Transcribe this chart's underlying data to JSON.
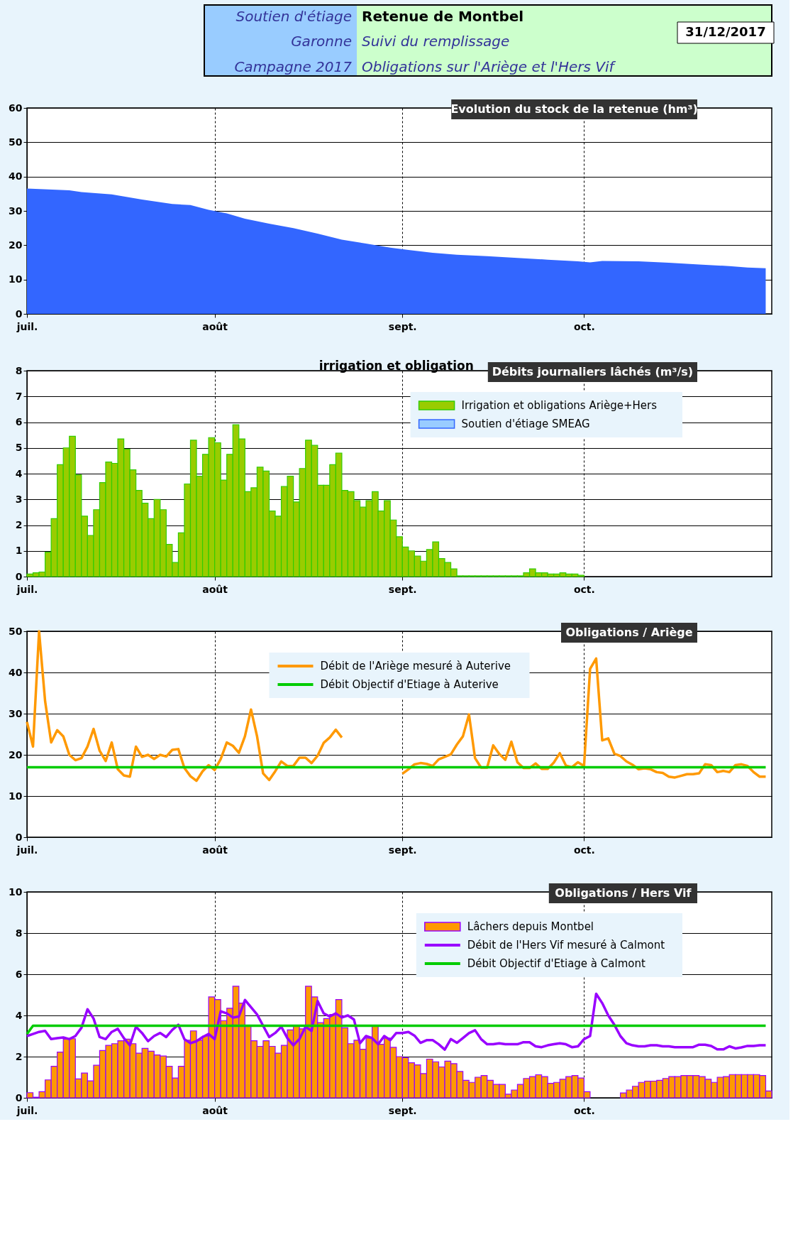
{
  "chart_data": [
    {
      "type": "area",
      "title": "Evolution du stock de la retenue (hm³)",
      "color": "#3366ff",
      "grid": true,
      "annotations": [
        "Soutien d'étiage",
        "Garonne",
        "Campagne 2017",
        "Retenue de Montbel",
        "Suivi du remplissage",
        "Obligations sur l'Ariège et l'Hers Vif",
        "31/12/2017"
      ],
      "x": [
        "2017-07-01",
        "2017-07-08",
        "2017-07-10",
        "2017-07-15",
        "2017-07-20",
        "2017-07-25",
        "2017-07-28",
        "2017-07-31",
        "2017-08-03",
        "2017-08-06",
        "2017-08-10",
        "2017-08-14",
        "2017-08-18",
        "2017-08-22",
        "2017-08-26",
        "2017-08-30",
        "2017-09-02",
        "2017-09-06",
        "2017-09-10",
        "2017-09-15",
        "2017-09-20",
        "2017-09-25",
        "2017-09-30",
        "2017-10-02",
        "2017-10-04",
        "2017-10-10",
        "2017-10-15",
        "2017-10-20",
        "2017-10-25",
        "2017-10-28",
        "2017-10-31"
      ],
      "values": [
        36.5,
        36,
        35.5,
        34.8,
        33.3,
        32,
        31.7,
        30.3,
        29.3,
        27.7,
        26.3,
        25,
        23.4,
        21.6,
        20.5,
        19.3,
        18.6,
        17.8,
        17.2,
        16.8,
        16.3,
        15.8,
        15.3,
        15,
        15.4,
        15.3,
        14.9,
        14.4,
        13.9,
        13.5,
        13.3
      ],
      "xlim": [
        "2017-07-01",
        "2017-11-01"
      ],
      "xticks": [
        {
          "value": "2017-07-01",
          "label": "juil."
        },
        {
          "value": "2017-08-01",
          "label": "août"
        },
        {
          "value": "2017-09-01",
          "label": "sept."
        },
        {
          "value": "2017-10-01",
          "label": "oct."
        }
      ],
      "ylim": [
        0,
        60
      ],
      "yticks": [
        0,
        10,
        20,
        30,
        40,
        50,
        60
      ]
    },
    {
      "type": "bar",
      "title": "Débits journaliers lâchés (m³/s)",
      "annotations": [
        "irrigation et obligation"
      ],
      "grid": true,
      "legend": "top right",
      "x": [
        "2017-07-01",
        "2017-07-02",
        "2017-07-03",
        "2017-07-04",
        "2017-07-05",
        "2017-07-06",
        "2017-07-07",
        "2017-07-08",
        "2017-07-09",
        "2017-07-10",
        "2017-07-11",
        "2017-07-12",
        "2017-07-13",
        "2017-07-14",
        "2017-07-15",
        "2017-07-16",
        "2017-07-17",
        "2017-07-18",
        "2017-07-19",
        "2017-07-20",
        "2017-07-21",
        "2017-07-22",
        "2017-07-23",
        "2017-07-24",
        "2017-07-25",
        "2017-07-26",
        "2017-07-27",
        "2017-07-28",
        "2017-07-29",
        "2017-07-30",
        "2017-07-31",
        "2017-08-01",
        "2017-08-02",
        "2017-08-03",
        "2017-08-04",
        "2017-08-05",
        "2017-08-06",
        "2017-08-07",
        "2017-08-08",
        "2017-08-09",
        "2017-08-10",
        "2017-08-11",
        "2017-08-12",
        "2017-08-13",
        "2017-08-14",
        "2017-08-15",
        "2017-08-16",
        "2017-08-17",
        "2017-08-18",
        "2017-08-19",
        "2017-08-20",
        "2017-08-21",
        "2017-08-22",
        "2017-08-23",
        "2017-08-24",
        "2017-08-25",
        "2017-08-26",
        "2017-08-27",
        "2017-08-28",
        "2017-08-29",
        "2017-08-30",
        "2017-08-31",
        "2017-09-01",
        "2017-09-02",
        "2017-09-03",
        "2017-09-04",
        "2017-09-05",
        "2017-09-06",
        "2017-09-07",
        "2017-09-08",
        "2017-09-09",
        "2017-09-10",
        "2017-09-11",
        "2017-09-12",
        "2017-09-13",
        "2017-09-14",
        "2017-09-15",
        "2017-09-16",
        "2017-09-17",
        "2017-09-18",
        "2017-09-19",
        "2017-09-20",
        "2017-09-21",
        "2017-09-22",
        "2017-09-23",
        "2017-09-24",
        "2017-09-25",
        "2017-09-26",
        "2017-09-27",
        "2017-09-28",
        "2017-09-29",
        "2017-09-30"
      ],
      "series": [
        {
          "name": "Irrigation et obligations Ariège+Hers",
          "color": "#99cc00",
          "values": [
            0.1,
            0.15,
            0.18,
            0.95,
            2.25,
            4.35,
            5.0,
            5.45,
            3.95,
            2.35,
            1.6,
            2.6,
            3.65,
            4.45,
            4.4,
            5.35,
            4.95,
            4.15,
            3.35,
            2.85,
            2.25,
            3.0,
            2.6,
            1.25,
            0.55,
            1.7,
            3.6,
            5.3,
            3.9,
            4.75,
            5.4,
            5.2,
            3.75,
            4.75,
            5.9,
            5.35,
            3.3,
            3.45,
            4.25,
            4.1,
            2.55,
            2.35,
            3.5,
            3.9,
            2.9,
            4.2,
            5.3,
            5.1,
            3.55,
            3.55,
            4.35,
            4.8,
            3.35,
            3.3,
            2.95,
            2.7,
            2.95,
            3.3,
            2.55,
            2.95,
            2.2,
            1.55,
            1.15,
            1.0,
            0.8,
            0.6,
            1.05,
            1.35,
            0.7,
            0.55,
            0.3,
            0.03,
            0.03,
            0.03,
            0.03,
            0.03,
            0.03,
            0.03,
            0.03,
            0.03,
            0.03,
            0.03,
            0.15,
            0.3,
            0.15,
            0.15,
            0.1,
            0.1,
            0.15,
            0.1,
            0.1,
            0.05
          ]
        },
        {
          "name": "Soutien d'étiage SMEAG",
          "color": "#99ccff",
          "values": [
            null,
            null,
            null,
            null,
            null,
            null,
            null,
            null,
            null,
            null,
            null,
            null,
            null,
            null,
            null,
            null,
            null,
            null,
            null,
            null,
            null,
            null,
            null,
            null,
            null,
            null,
            null,
            null,
            null,
            null,
            null,
            null,
            null,
            null,
            null,
            null,
            null,
            null,
            null,
            null,
            null,
            null,
            null,
            null,
            null,
            null,
            null,
            null,
            null,
            null,
            null,
            null,
            null,
            null,
            null,
            null,
            null,
            null,
            null,
            null,
            null,
            null,
            null,
            null,
            null,
            null,
            null,
            null,
            null,
            null,
            null,
            null,
            null,
            null,
            null,
            null,
            null,
            null,
            null,
            null,
            null,
            null,
            null,
            null,
            null,
            null,
            null,
            null,
            null,
            null,
            null,
            null
          ]
        }
      ],
      "xlim": [
        "2017-07-01",
        "2017-11-01"
      ],
      "xticks": [
        {
          "value": "2017-07-01",
          "label": "juil."
        },
        {
          "value": "2017-08-01",
          "label": "août"
        },
        {
          "value": "2017-09-01",
          "label": "sept."
        },
        {
          "value": "2017-10-01",
          "label": "oct."
        }
      ],
      "ylim": [
        0,
        8
      ],
      "yticks": [
        0,
        1,
        2,
        3,
        4,
        5,
        6,
        7,
        8
      ]
    },
    {
      "type": "line",
      "title": "Obligations / Ariège",
      "grid": true,
      "legend": "top",
      "x": [
        "2017-07-01",
        "2017-07-02",
        "2017-07-03",
        "2017-07-04",
        "2017-07-05",
        "2017-07-06",
        "2017-07-07",
        "2017-07-08",
        "2017-07-09",
        "2017-07-10",
        "2017-07-11",
        "2017-07-12",
        "2017-07-13",
        "2017-07-14",
        "2017-07-15",
        "2017-07-16",
        "2017-07-17",
        "2017-07-18",
        "2017-07-19",
        "2017-07-20",
        "2017-07-21",
        "2017-07-22",
        "2017-07-23",
        "2017-07-24",
        "2017-07-25",
        "2017-07-26",
        "2017-07-27",
        "2017-07-28",
        "2017-07-29",
        "2017-07-30",
        "2017-07-31",
        "2017-08-01",
        "2017-08-02",
        "2017-08-03",
        "2017-08-04",
        "2017-08-05",
        "2017-08-06",
        "2017-08-07",
        "2017-08-08",
        "2017-08-09",
        "2017-08-10",
        "2017-08-11",
        "2017-08-12",
        "2017-08-13",
        "2017-08-14",
        "2017-08-15",
        "2017-08-16",
        "2017-08-17",
        "2017-08-18",
        "2017-08-19",
        "2017-08-20",
        "2017-08-21",
        "2017-08-22",
        "2017-08-23",
        "2017-08-24",
        "2017-08-25",
        "2017-08-26",
        "2017-08-27",
        "2017-08-28",
        "2017-08-29",
        "2017-08-30",
        "2017-08-31",
        "2017-09-01",
        "2017-09-02",
        "2017-09-03",
        "2017-09-04",
        "2017-09-05",
        "2017-09-06",
        "2017-09-07",
        "2017-09-08",
        "2017-09-09",
        "2017-09-10",
        "2017-09-11",
        "2017-09-12",
        "2017-09-13",
        "2017-09-14",
        "2017-09-15",
        "2017-09-16",
        "2017-09-17",
        "2017-09-18",
        "2017-09-19",
        "2017-09-20",
        "2017-09-21",
        "2017-09-22",
        "2017-09-23",
        "2017-09-24",
        "2017-09-25",
        "2017-09-26",
        "2017-09-27",
        "2017-09-28",
        "2017-09-29",
        "2017-09-30",
        "2017-10-01",
        "2017-10-02",
        "2017-10-03",
        "2017-10-04",
        "2017-10-05",
        "2017-10-06",
        "2017-10-07",
        "2017-10-08",
        "2017-10-09",
        "2017-10-10",
        "2017-10-11",
        "2017-10-12",
        "2017-10-13",
        "2017-10-14",
        "2017-10-15",
        "2017-10-16",
        "2017-10-17",
        "2017-10-18",
        "2017-10-19",
        "2017-10-20",
        "2017-10-21",
        "2017-10-22",
        "2017-10-23",
        "2017-10-24",
        "2017-10-25",
        "2017-10-26",
        "2017-10-27",
        "2017-10-28",
        "2017-10-29",
        "2017-10-30",
        "2017-10-31"
      ],
      "series": [
        {
          "name": "Débit de l'Ariège mesuré à Auterive",
          "color": "#ff9900",
          "values": [
            28,
            22,
            50,
            33,
            23,
            26,
            24.5,
            20,
            18.7,
            19.2,
            22,
            26.3,
            21,
            18.5,
            23,
            16.5,
            15,
            14.7,
            22,
            19.5,
            20,
            19,
            20,
            19.6,
            21.2,
            21.4,
            16.8,
            14.8,
            13.7,
            16,
            17.5,
            16.3,
            19,
            23,
            22.2,
            20.5,
            24.5,
            31,
            24.5,
            15.5,
            13.9,
            16,
            18.4,
            17.3,
            17.3,
            19.3,
            19.3,
            18,
            19.8,
            22.9,
            24.2,
            26.1,
            24.2,
            null,
            null,
            null,
            null,
            null,
            null,
            null,
            null,
            null,
            15.4,
            16.5,
            17.7,
            18,
            17.8,
            17.3,
            18.9,
            19.5,
            20.1,
            22.5,
            24.5,
            29.8,
            19.2,
            16.9,
            16.9,
            22.3,
            20.2,
            18.8,
            23.2,
            18.2,
            16.8,
            16.8,
            17.9,
            16.6,
            16.6,
            18.1,
            20.4,
            17.4,
            17,
            18.2,
            17.3,
            40.9,
            43.4,
            23.5,
            24,
            20.3,
            19.7,
            18.4,
            17.6,
            16.5,
            16.7,
            16.5,
            15.8,
            15.6,
            14.7,
            14.5,
            14.9,
            15.3,
            15.3,
            15.5,
            17.7,
            17.5,
            15.8,
            16.1,
            15.8,
            17.5,
            17.7,
            17.3,
            15.8,
            14.7,
            14.7
          ]
        },
        {
          "name": "Débit Objectif d'Etiage à Auterive",
          "color": "#00cc00",
          "x": [
            "2017-07-01",
            "2017-10-31"
          ],
          "values": [
            17,
            17
          ]
        }
      ],
      "xlim": [
        "2017-07-01",
        "2017-11-01"
      ],
      "xticks": [
        {
          "value": "2017-07-01",
          "label": "juil."
        },
        {
          "value": "2017-08-01",
          "label": "août"
        },
        {
          "value": "2017-09-01",
          "label": "sept."
        },
        {
          "value": "2017-10-01",
          "label": "oct."
        }
      ],
      "ylim": [
        0,
        50
      ],
      "yticks": [
        0,
        10,
        20,
        30,
        40,
        50
      ]
    },
    {
      "type": "bar",
      "title": "Obligations / Hers Vif",
      "grid": true,
      "legend": "top right",
      "x": [
        "2017-07-01",
        "2017-07-02",
        "2017-07-03",
        "2017-07-04",
        "2017-07-05",
        "2017-07-06",
        "2017-07-07",
        "2017-07-08",
        "2017-07-09",
        "2017-07-10",
        "2017-07-11",
        "2017-07-12",
        "2017-07-13",
        "2017-07-14",
        "2017-07-15",
        "2017-07-16",
        "2017-07-17",
        "2017-07-18",
        "2017-07-19",
        "2017-07-20",
        "2017-07-21",
        "2017-07-22",
        "2017-07-23",
        "2017-07-24",
        "2017-07-25",
        "2017-07-26",
        "2017-07-27",
        "2017-07-28",
        "2017-07-29",
        "2017-07-30",
        "2017-07-31",
        "2017-08-01",
        "2017-08-02",
        "2017-08-03",
        "2017-08-04",
        "2017-08-05",
        "2017-08-06",
        "2017-08-07",
        "2017-08-08",
        "2017-08-09",
        "2017-08-10",
        "2017-08-11",
        "2017-08-12",
        "2017-08-13",
        "2017-08-14",
        "2017-08-15",
        "2017-08-16",
        "2017-08-17",
        "2017-08-18",
        "2017-08-19",
        "2017-08-20",
        "2017-08-21",
        "2017-08-22",
        "2017-08-23",
        "2017-08-24",
        "2017-08-25",
        "2017-08-26",
        "2017-08-27",
        "2017-08-28",
        "2017-08-29",
        "2017-08-30",
        "2017-08-31",
        "2017-09-01",
        "2017-09-02",
        "2017-09-03",
        "2017-09-04",
        "2017-09-05",
        "2017-09-06",
        "2017-09-07",
        "2017-09-08",
        "2017-09-09",
        "2017-09-10",
        "2017-09-11",
        "2017-09-12",
        "2017-09-13",
        "2017-09-14",
        "2017-09-15",
        "2017-09-16",
        "2017-09-17",
        "2017-09-18",
        "2017-09-19",
        "2017-09-20",
        "2017-09-21",
        "2017-09-22",
        "2017-09-23",
        "2017-09-24",
        "2017-09-25",
        "2017-09-26",
        "2017-09-27",
        "2017-09-28",
        "2017-09-29",
        "2017-09-30",
        "2017-10-01",
        "2017-10-02",
        "2017-10-03",
        "2017-10-04",
        "2017-10-05",
        "2017-10-06",
        "2017-10-07",
        "2017-10-08",
        "2017-10-09",
        "2017-10-10",
        "2017-10-11",
        "2017-10-12",
        "2017-10-13",
        "2017-10-14",
        "2017-10-15",
        "2017-10-16",
        "2017-10-17",
        "2017-10-18",
        "2017-10-19",
        "2017-10-20",
        "2017-10-21",
        "2017-10-22",
        "2017-10-23",
        "2017-10-24",
        "2017-10-25",
        "2017-10-26",
        "2017-10-27",
        "2017-10-28",
        "2017-10-29",
        "2017-10-30",
        "2017-10-31"
      ],
      "series": [
        {
          "name": "Lâchers depuis Montbel",
          "color": "#ff9900",
          "values": [
            0.25,
            0.03,
            0.3,
            0.87,
            1.53,
            2.22,
            2.85,
            2.87,
            0.92,
            1.2,
            0.82,
            1.58,
            2.3,
            2.55,
            2.63,
            2.77,
            2.85,
            2.63,
            2.17,
            2.4,
            2.26,
            2.08,
            2.03,
            1.53,
            0.96,
            1.53,
            2.8,
            3.25,
            2.8,
            3.0,
            4.9,
            4.77,
            3.75,
            4.35,
            5.42,
            4.6,
            3.5,
            2.77,
            2.5,
            2.77,
            2.5,
            2.17,
            2.55,
            3.3,
            3.5,
            3.35,
            5.42,
            4.9,
            3.65,
            3.85,
            4.05,
            4.77,
            3.4,
            2.63,
            2.8,
            2.36,
            2.9,
            3.5,
            2.6,
            2.9,
            2.45,
            2.0,
            1.95,
            1.7,
            1.6,
            1.18,
            1.88,
            1.75,
            1.5,
            1.78,
            1.66,
            1.28,
            0.85,
            0.75,
            1.0,
            1.08,
            0.85,
            0.65,
            0.65,
            0.18,
            0.38,
            0.65,
            0.94,
            1.03,
            1.12,
            1.03,
            0.7,
            0.75,
            0.9,
            1.03,
            1.08,
            0.96,
            0.3,
            0,
            0,
            0,
            0,
            0,
            0.24,
            0.38,
            0.56,
            0.75,
            0.81,
            0.81,
            0.85,
            0.94,
            1.03,
            1.03,
            1.08,
            1.08,
            1.08,
            1.03,
            0.9,
            0.75,
            1.0,
            1.03,
            1.13,
            1.13,
            1.13,
            1.13,
            1.13,
            1.08,
            0.33
          ]
        },
        {
          "name": "Débit de l'Hers Vif mesuré à Calmont",
          "type": "line",
          "color": "#9900ff",
          "values": [
            3.0,
            3.1,
            3.2,
            3.25,
            2.85,
            2.9,
            2.93,
            2.85,
            3.0,
            3.4,
            4.3,
            3.85,
            2.95,
            2.85,
            3.2,
            3.35,
            2.9,
            2.55,
            3.45,
            3.15,
            2.75,
            3.0,
            3.15,
            2.95,
            3.3,
            3.55,
            2.85,
            2.65,
            2.75,
            2.95,
            3.1,
            2.85,
            4.2,
            4.1,
            3.9,
            3.95,
            4.75,
            4.4,
            4.05,
            3.5,
            2.95,
            3.15,
            3.45,
            2.9,
            2.55,
            2.85,
            3.45,
            3.25,
            4.7,
            4.1,
            3.95,
            4.1,
            3.9,
            4.0,
            3.8,
            2.65,
            3.0,
            2.9,
            2.6,
            3.0,
            2.8,
            3.15,
            3.15,
            3.2,
            3.02,
            2.67,
            2.8,
            2.8,
            2.6,
            2.34,
            2.85,
            2.67,
            2.9,
            3.14,
            3.28,
            2.85,
            2.6,
            2.6,
            2.65,
            2.6,
            2.6,
            2.6,
            2.7,
            2.7,
            2.5,
            2.46,
            2.55,
            2.6,
            2.65,
            2.6,
            2.46,
            2.5,
            2.85,
            3.0,
            5.05,
            4.6,
            4.0,
            3.55,
            3.0,
            2.65,
            2.55,
            2.5,
            2.5,
            2.55,
            2.55,
            2.5,
            2.5,
            2.46,
            2.46,
            2.46,
            2.46,
            2.58,
            2.58,
            2.52,
            2.35,
            2.35,
            2.5,
            2.4,
            2.45,
            2.52,
            2.52,
            2.55,
            2.55
          ]
        },
        {
          "name": "Débit Objectif d'Etiage à Calmont",
          "type": "line",
          "color": "#00cc00",
          "x": [
            "2017-07-01",
            "2017-07-02",
            "2017-10-31"
          ],
          "values": [
            3.1,
            3.5,
            3.5
          ]
        }
      ],
      "xlim": [
        "2017-07-01",
        "2017-11-01"
      ],
      "xticks": [
        {
          "value": "2017-07-01",
          "label": "juil."
        },
        {
          "value": "2017-08-01",
          "label": "août"
        },
        {
          "value": "2017-09-01",
          "label": "sept."
        },
        {
          "value": "2017-10-01",
          "label": "oct."
        }
      ],
      "ylim": [
        0,
        10
      ],
      "yticks": [
        0,
        2,
        4,
        6,
        8,
        10
      ]
    }
  ]
}
